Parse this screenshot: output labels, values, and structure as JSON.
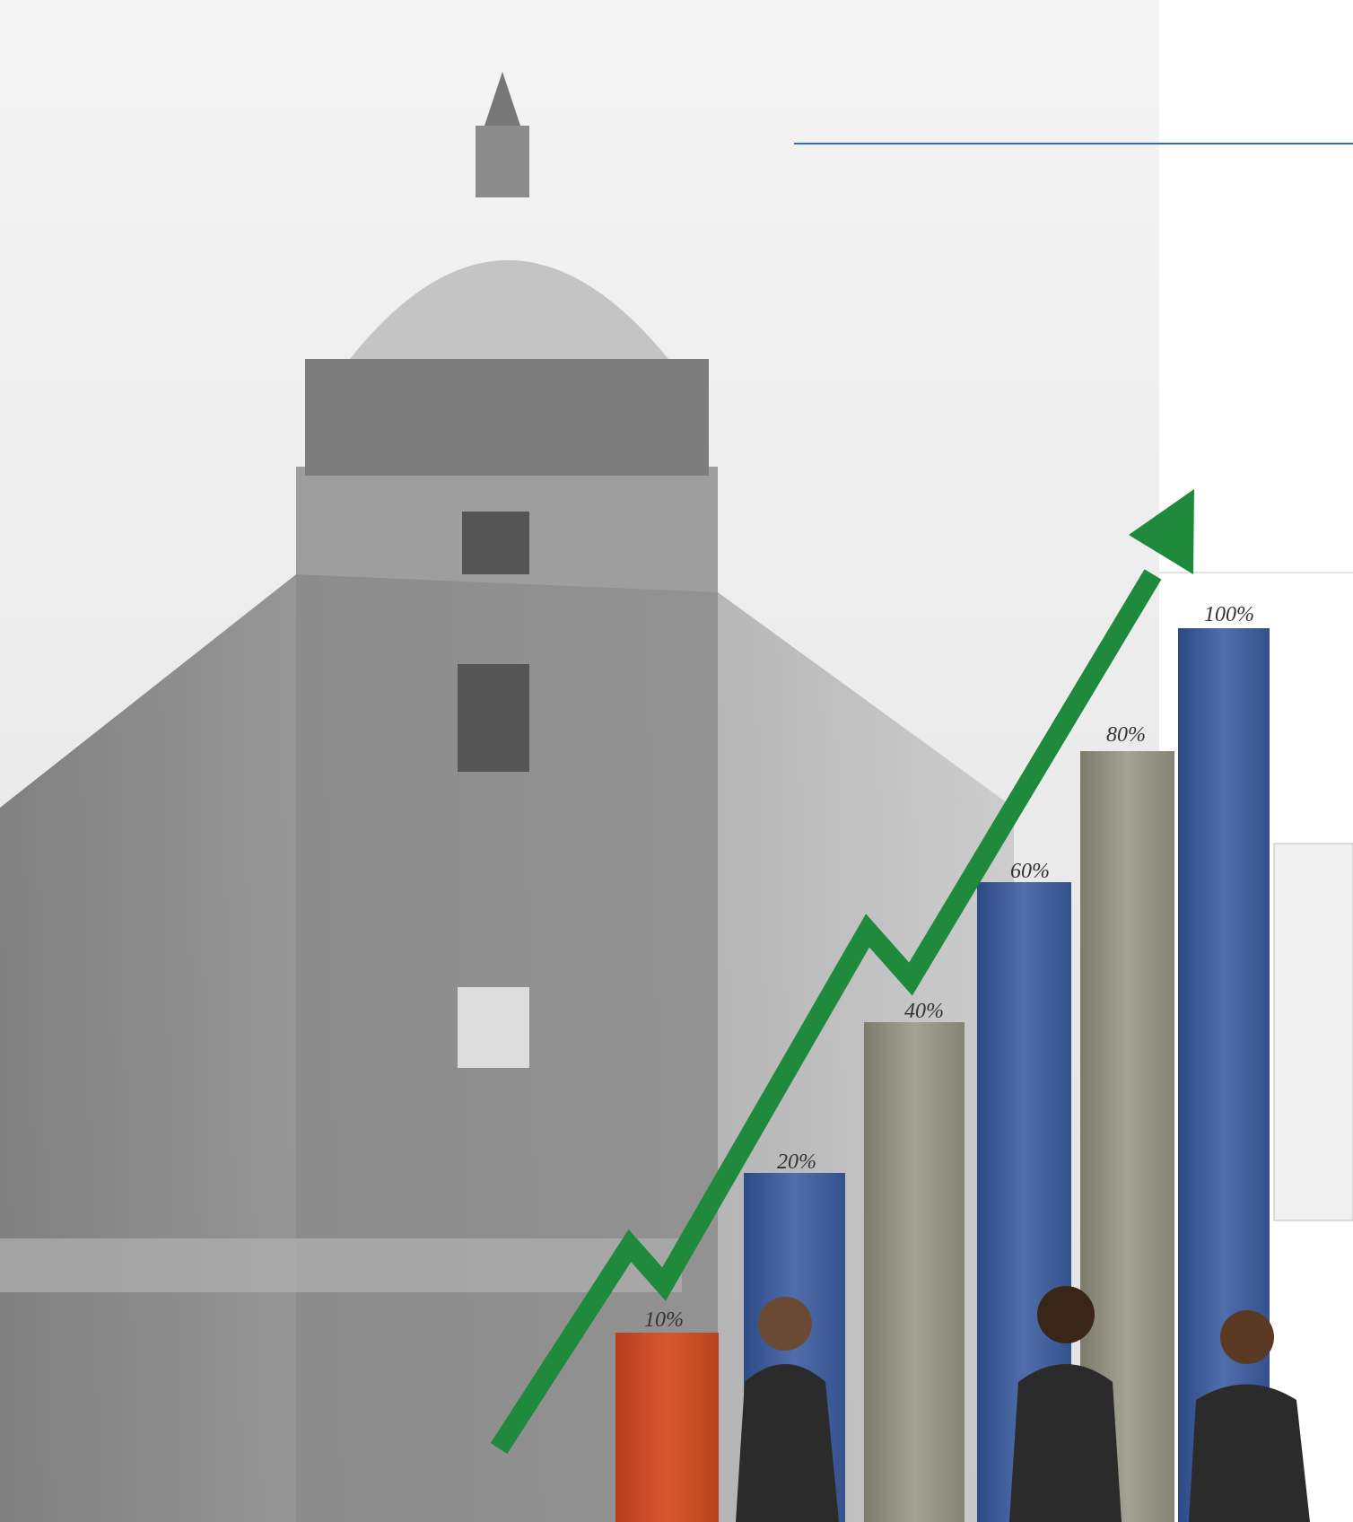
{
  "illustration": {
    "bar_labels": [
      "10%",
      "20%",
      "40%",
      "60%",
      "80%",
      "100%"
    ]
  }
}
